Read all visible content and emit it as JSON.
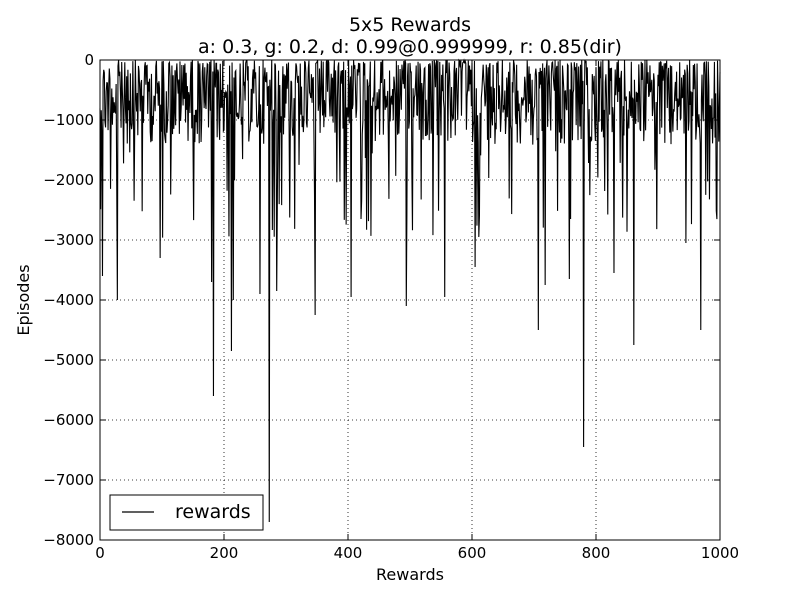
{
  "chart_data": {
    "type": "line",
    "title": "5x5 Rewards",
    "subtitle": "a: 0.3, g: 0.2, d: 0.99@0.999999, r: 0.85(dir)",
    "xlabel": "Rewards",
    "ylabel": "Episodes",
    "xlim": [
      0,
      1000
    ],
    "ylim": [
      -8000,
      0
    ],
    "x_ticks": [
      0,
      200,
      400,
      600,
      800,
      1000
    ],
    "x_tick_labels": [
      "0",
      "200",
      "400",
      "600",
      "800",
      "1000"
    ],
    "y_ticks": [
      0,
      -1000,
      -2000,
      -3000,
      -4000,
      -5000,
      -6000,
      -7000,
      -8000
    ],
    "y_tick_labels": [
      "0",
      "−1000",
      "−2000",
      "−3000",
      "−4000",
      "−5000",
      "−6000",
      "−7000",
      "−8000"
    ],
    "grid": true,
    "legend_position": "lower-left",
    "series": [
      {
        "name": "rewards",
        "color": "#000000",
        "noise_seed": 12345,
        "baseline_min": -1400,
        "spike_points": [
          {
            "x": 4,
            "y": -3600
          },
          {
            "x": 28,
            "y": -4000
          },
          {
            "x": 97,
            "y": -3300
          },
          {
            "x": 180,
            "y": -3700
          },
          {
            "x": 183,
            "y": -5600
          },
          {
            "x": 212,
            "y": -4850
          },
          {
            "x": 215,
            "y": -4000
          },
          {
            "x": 258,
            "y": -3900
          },
          {
            "x": 273,
            "y": -7700
          },
          {
            "x": 285,
            "y": -3850
          },
          {
            "x": 347,
            "y": -4250
          },
          {
            "x": 405,
            "y": -3950
          },
          {
            "x": 494,
            "y": -4100
          },
          {
            "x": 556,
            "y": -3950
          },
          {
            "x": 605,
            "y": -3450
          },
          {
            "x": 707,
            "y": -4500
          },
          {
            "x": 718,
            "y": -3750
          },
          {
            "x": 757,
            "y": -3650
          },
          {
            "x": 780,
            "y": -6450
          },
          {
            "x": 829,
            "y": -3550
          },
          {
            "x": 861,
            "y": -4750
          },
          {
            "x": 945,
            "y": -3050
          },
          {
            "x": 969,
            "y": -4500
          }
        ]
      }
    ]
  }
}
